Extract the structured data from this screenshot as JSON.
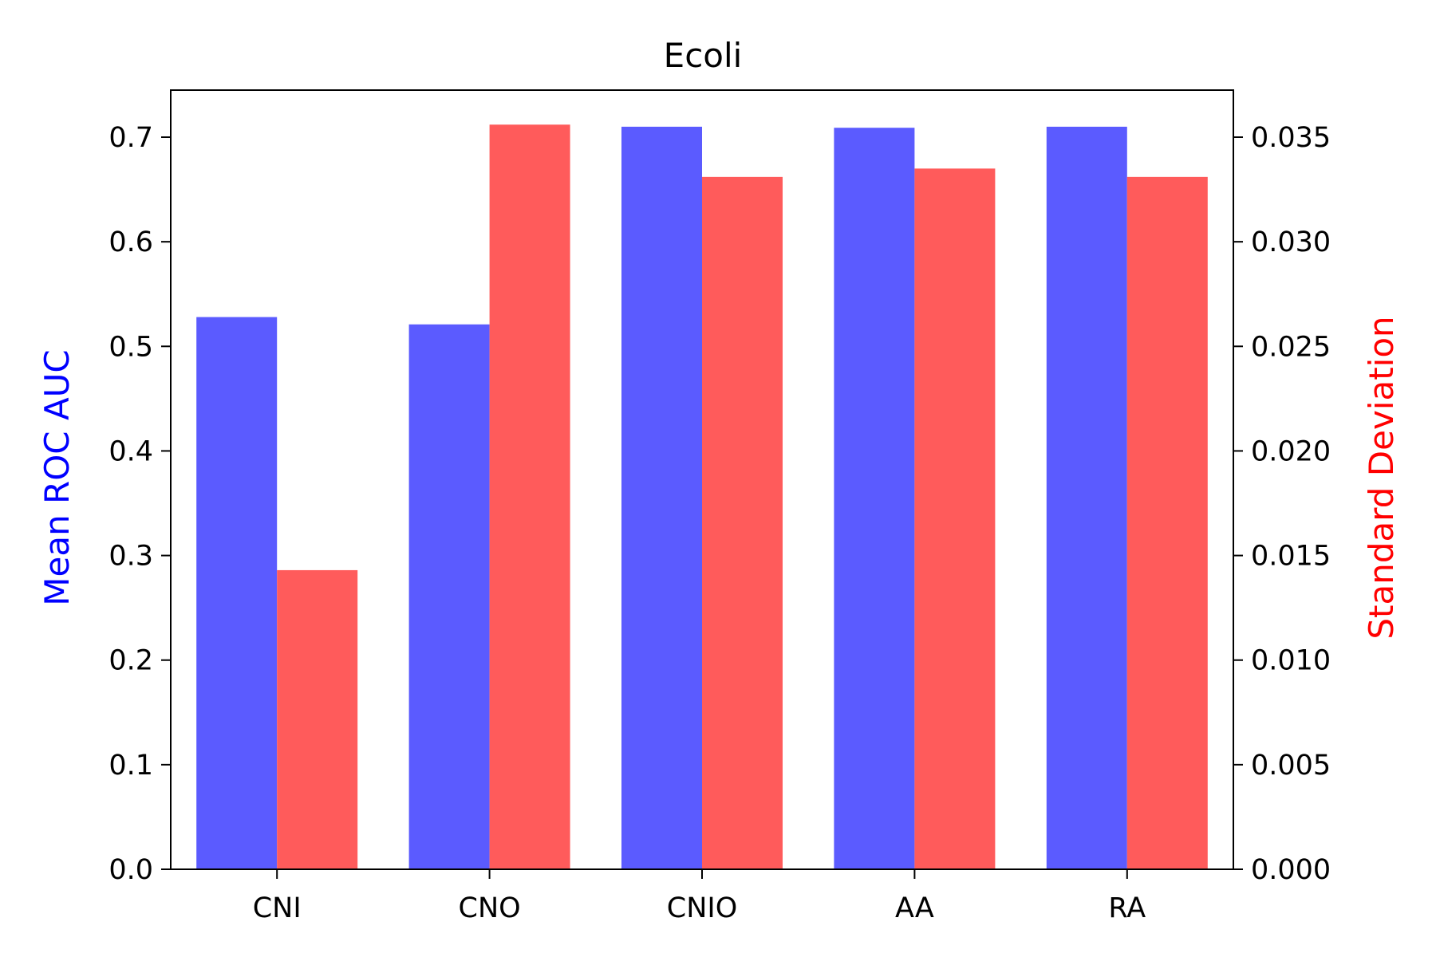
{
  "chart_data": {
    "type": "bar",
    "title": "Ecoli",
    "xlabel": "",
    "categories": [
      "CNI",
      "CNO",
      "CNIO",
      "AA",
      "RA"
    ],
    "series": [
      {
        "axis": "left",
        "color": "#5b5bff",
        "values": [
          0.528,
          0.521,
          0.71,
          0.709,
          0.71
        ]
      },
      {
        "axis": "right",
        "color": "#ff5b5b",
        "values": [
          0.0143,
          0.0356,
          0.0331,
          0.0335,
          0.0331
        ]
      }
    ],
    "y_left": {
      "label": "Mean ROC AUC",
      "label_color": "#0000ff",
      "lim": [
        0,
        0.745
      ],
      "ticks": [
        0.0,
        0.1,
        0.2,
        0.3,
        0.4,
        0.5,
        0.6,
        0.7
      ],
      "tick_labels": [
        "0.0",
        "0.1",
        "0.2",
        "0.3",
        "0.4",
        "0.5",
        "0.6",
        "0.7"
      ]
    },
    "y_right": {
      "label": "Standard Deviation",
      "label_color": "#ff0000",
      "lim": [
        0,
        0.03725
      ],
      "ticks": [
        0.0,
        0.005,
        0.01,
        0.015,
        0.02,
        0.025,
        0.03,
        0.035
      ],
      "tick_labels": [
        "0.000",
        "0.005",
        "0.010",
        "0.015",
        "0.020",
        "0.025",
        "0.030",
        "0.035"
      ]
    },
    "grid": false,
    "legend": "none"
  }
}
